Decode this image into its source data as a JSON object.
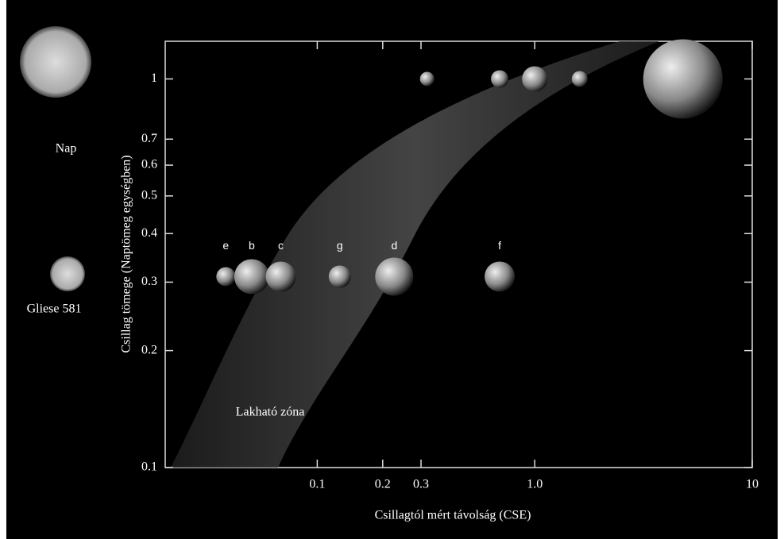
{
  "chart_data": {
    "type": "scatter",
    "x_label": "Csillagtól mért távolság (CSE)",
    "y_label": "Csillag tömege (Naptömeg egységben)",
    "annotations": {
      "sun": "Nap",
      "star": "Gliese 581",
      "zone": "Lakható zóna"
    },
    "log_x": true,
    "log_y": true,
    "xlim": [
      0.02,
      10
    ],
    "ylim": [
      0.1,
      1.25
    ],
    "xticks": [
      0.1,
      0.2,
      0.3,
      {
        "value": 1,
        "label": "1.0"
      },
      10
    ],
    "yticks": [
      0.1,
      0.2,
      0.3,
      0.4,
      0.5,
      0.6,
      0.7,
      1
    ],
    "series": [
      {
        "labels": [
          "e",
          "b",
          "c",
          "g",
          "d",
          "f"
        ],
        "x": [
          0.038,
          0.05,
          0.068,
          0.127,
          0.226,
          0.69
        ],
        "values": [
          0.31,
          0.31,
          0.31,
          0.31,
          0.31,
          0.31
        ]
      },
      {
        "x": [
          0.32,
          0.69,
          1,
          1.61,
          4.8
        ],
        "values": [
          1,
          1,
          1,
          1,
          1
        ]
      }
    ]
  }
}
